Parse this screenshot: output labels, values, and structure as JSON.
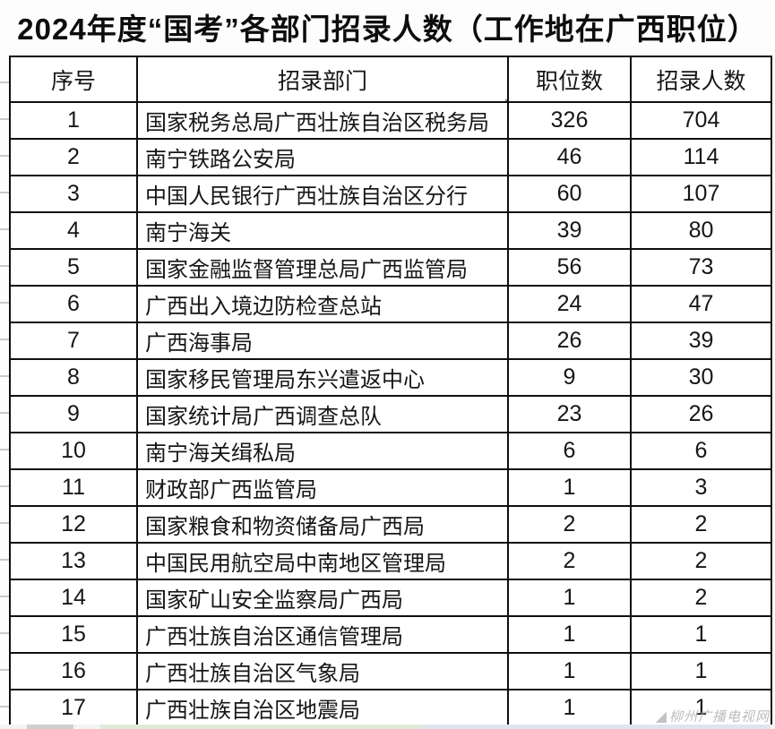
{
  "title": "2024年度“国考”各部门招录人数（工作地在广西职位）",
  "table": {
    "columns": [
      "序号",
      "招录部门",
      "职位数",
      "招录人数"
    ],
    "rows": [
      {
        "no": "1",
        "dept": "国家税务总局广西壮族自治区税务局",
        "positions": "326",
        "recruits": "704"
      },
      {
        "no": "2",
        "dept": "南宁铁路公安局",
        "positions": "46",
        "recruits": "114"
      },
      {
        "no": "3",
        "dept": "中国人民银行广西壮族自治区分行",
        "positions": "60",
        "recruits": "107"
      },
      {
        "no": "4",
        "dept": "南宁海关",
        "positions": "39",
        "recruits": "80"
      },
      {
        "no": "5",
        "dept": "国家金融监督管理总局广西监管局",
        "positions": "56",
        "recruits": "73"
      },
      {
        "no": "6",
        "dept": "广西出入境边防检查总站",
        "positions": "24",
        "recruits": "47"
      },
      {
        "no": "7",
        "dept": "广西海事局",
        "positions": "26",
        "recruits": "39"
      },
      {
        "no": "8",
        "dept": "国家移民管理局东兴遣返中心",
        "positions": "9",
        "recruits": "30"
      },
      {
        "no": "9",
        "dept": "国家统计局广西调查总队",
        "positions": "23",
        "recruits": "26"
      },
      {
        "no": "10",
        "dept": "南宁海关缉私局",
        "positions": "6",
        "recruits": "6"
      },
      {
        "no": "11",
        "dept": "财政部广西监管局",
        "positions": "1",
        "recruits": "3"
      },
      {
        "no": "12",
        "dept": "国家粮食和物资储备局广西局",
        "positions": "2",
        "recruits": "2"
      },
      {
        "no": "13",
        "dept": "中国民用航空局中南地区管理局",
        "positions": "2",
        "recruits": "2"
      },
      {
        "no": "14",
        "dept": "国家矿山安全监察局广西局",
        "positions": "1",
        "recruits": "2"
      },
      {
        "no": "15",
        "dept": "广西壮族自治区通信管理局",
        "positions": "1",
        "recruits": "1"
      },
      {
        "no": "16",
        "dept": "广西壮族自治区气象局",
        "positions": "1",
        "recruits": "1"
      },
      {
        "no": "17",
        "dept": "广西壮族自治区地震局",
        "positions": "1",
        "recruits": "1"
      }
    ]
  },
  "watermark": {
    "logo": "◢",
    "text": "柳州广播电视网"
  },
  "colors": {
    "selection_green": "#6d915c",
    "grid_border": "#0f0f0f"
  }
}
